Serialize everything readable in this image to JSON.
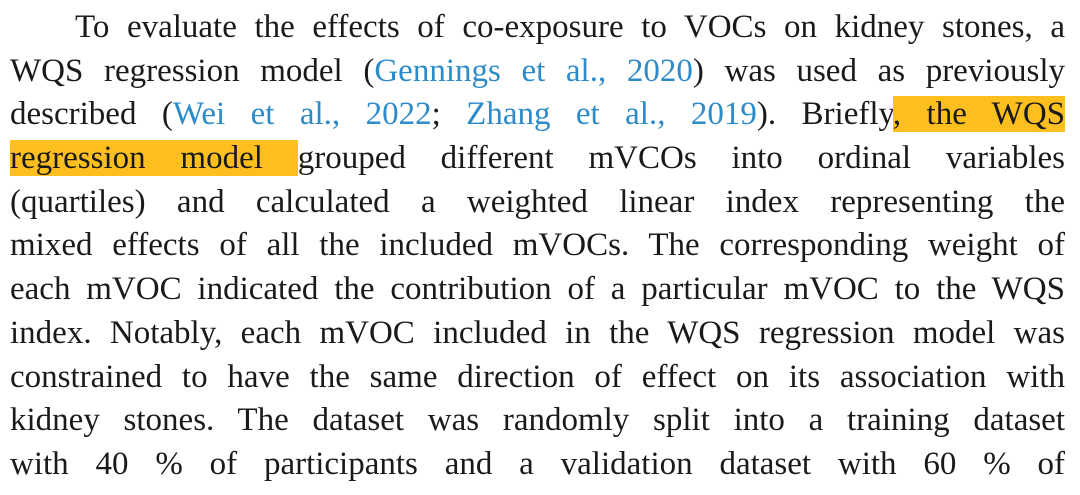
{
  "paragraph": {
    "lines": [
      [
        {
          "text": "To evaluate the effects of co-exposure to VOCs on kidney stones, a",
          "style": "plain"
        }
      ],
      [
        {
          "text": "WQS regression model (",
          "style": "plain"
        },
        {
          "text": "Gennings et al., 2020",
          "style": "link"
        },
        {
          "text": ") was used as previously",
          "style": "plain"
        }
      ],
      [
        {
          "text": "described (",
          "style": "plain"
        },
        {
          "text": "Wei et al., 2022",
          "style": "link"
        },
        {
          "text": "; ",
          "style": "plain"
        },
        {
          "text": "Zhang et al., 2019",
          "style": "link"
        },
        {
          "text": "). Briefly",
          "style": "plain"
        },
        {
          "text": ", the WQS",
          "style": "highlight"
        }
      ],
      [
        {
          "text": "regression model ",
          "style": "highlight"
        },
        {
          "text": " grouped different mVCOs into ordinal variables",
          "style": "plain"
        }
      ],
      [
        {
          "text": "(quartiles) and calculated a weighted linear index representing the",
          "style": "plain"
        }
      ],
      [
        {
          "text": "mixed effects of all the included mVOCs. The corresponding weight of",
          "style": "plain"
        }
      ],
      [
        {
          "text": "each mVOC indicated the contribution of a particular mVOC to the WQS",
          "style": "plain"
        }
      ],
      [
        {
          "text": "index. Notably, each mVOC included in the WQS regression model was",
          "style": "plain"
        }
      ],
      [
        {
          "text": "constrained to have the same direction of effect on its association with",
          "style": "plain"
        }
      ],
      [
        {
          "text": "kidney stones. The dataset was randomly split into a training dataset",
          "style": "plain"
        }
      ],
      [
        {
          "text": "with 40 % of participants and a validation dataset with 60 % of",
          "style": "plain"
        }
      ]
    ]
  }
}
